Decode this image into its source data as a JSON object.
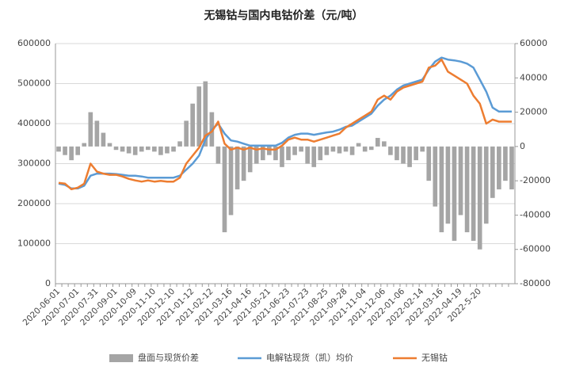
{
  "chart_data": {
    "type": "bar-line",
    "title": "无锡钴与国内电钴价差（元/吨）",
    "categories": [
      "2020-06-01",
      null,
      null,
      "2020-07-01",
      null,
      null,
      "2020-07-31",
      null,
      null,
      "2020-09-01",
      null,
      null,
      "2020-10-09",
      null,
      null,
      "2020-11-10",
      null,
      null,
      "2020-12-10",
      null,
      null,
      "2021-01-12",
      null,
      null,
      "2021-02-12",
      null,
      null,
      "2021-03-16",
      null,
      null,
      "2021-04-16",
      null,
      null,
      "2021-05-21",
      null,
      null,
      "2021-06-23",
      null,
      null,
      "2021-07-23",
      null,
      null,
      "2021-08-25",
      null,
      null,
      "2021-09-28",
      null,
      null,
      "2021-11-04",
      null,
      null,
      "2021-12-06",
      null,
      null,
      "2022-01-06",
      null,
      null,
      "2022-02-14",
      null,
      null,
      "2022-03-16",
      null,
      null,
      "2022-04-19",
      null,
      null,
      "2022-5-20",
      null,
      null,
      null,
      null,
      null
    ],
    "series": [
      {
        "name": "盘面与现货价差",
        "kind": "bar",
        "axis": "y2",
        "color": "#a5a5a5",
        "values": [
          -3000,
          -5000,
          -8000,
          -5000,
          2000,
          20000,
          15000,
          8000,
          2000,
          -2000,
          -3000,
          -4000,
          -5000,
          -3000,
          -2000,
          -3000,
          -5000,
          -4000,
          -3000,
          3000,
          15000,
          25000,
          35000,
          38000,
          20000,
          -10000,
          -50000,
          -40000,
          -25000,
          -20000,
          -15000,
          -10000,
          -8000,
          -5000,
          -8000,
          -12000,
          -8000,
          -5000,
          -3000,
          -10000,
          -12000,
          -8000,
          -5000,
          -3000,
          -4000,
          -3000,
          -5000,
          2000,
          -3000,
          -2000,
          5000,
          3000,
          -5000,
          -8000,
          -10000,
          -12000,
          -8000,
          -3000,
          -20000,
          -35000,
          -50000,
          -45000,
          -55000,
          -40000,
          -50000,
          -55000,
          -60000,
          -45000,
          -30000,
          -25000,
          -20000,
          -25000
        ]
      },
      {
        "name": "电解钴现货（凯）均价",
        "kind": "line",
        "color": "#5b9bd5",
        "values": [
          250000,
          247000,
          238000,
          238000,
          245000,
          270000,
          275000,
          275000,
          275000,
          274000,
          272000,
          270000,
          270000,
          268000,
          265000,
          265000,
          265000,
          265000,
          265000,
          270000,
          285000,
          300000,
          320000,
          360000,
          385000,
          400000,
          375000,
          358000,
          355000,
          350000,
          345000,
          345000,
          345000,
          345000,
          345000,
          352000,
          365000,
          372000,
          375000,
          375000,
          372000,
          375000,
          378000,
          380000,
          385000,
          392000,
          395000,
          405000,
          415000,
          425000,
          445000,
          460000,
          470000,
          485000,
          495000,
          500000,
          505000,
          510000,
          535000,
          555000,
          565000,
          560000,
          558000,
          555000,
          550000,
          540000,
          510000,
          480000,
          440000,
          430000,
          430000,
          430000
        ]
      },
      {
        "name": "无锡钴",
        "kind": "line",
        "color": "#ed7d31",
        "values": [
          252000,
          250000,
          236000,
          240000,
          250000,
          300000,
          280000,
          275000,
          272000,
          272000,
          268000,
          262000,
          258000,
          255000,
          258000,
          255000,
          257000,
          255000,
          255000,
          265000,
          300000,
          320000,
          340000,
          370000,
          380000,
          405000,
          350000,
          335000,
          340000,
          335000,
          340000,
          335000,
          338000,
          335000,
          335000,
          345000,
          360000,
          365000,
          360000,
          360000,
          355000,
          360000,
          365000,
          370000,
          375000,
          390000,
          400000,
          410000,
          420000,
          430000,
          460000,
          470000,
          460000,
          480000,
          490000,
          495000,
          500000,
          505000,
          540000,
          545000,
          560000,
          530000,
          520000,
          510000,
          500000,
          470000,
          450000,
          400000,
          410000,
          405000,
          405000,
          405000
        ]
      }
    ],
    "ylim": [
      0,
      600000
    ],
    "yticks": [
      0,
      100000,
      200000,
      300000,
      400000,
      500000,
      600000
    ],
    "y2lim": [
      -80000,
      60000
    ],
    "y2ticks": [
      -80000,
      -60000,
      -40000,
      -20000,
      0,
      20000,
      40000,
      60000
    ],
    "grid": true,
    "legend": "bottom"
  }
}
